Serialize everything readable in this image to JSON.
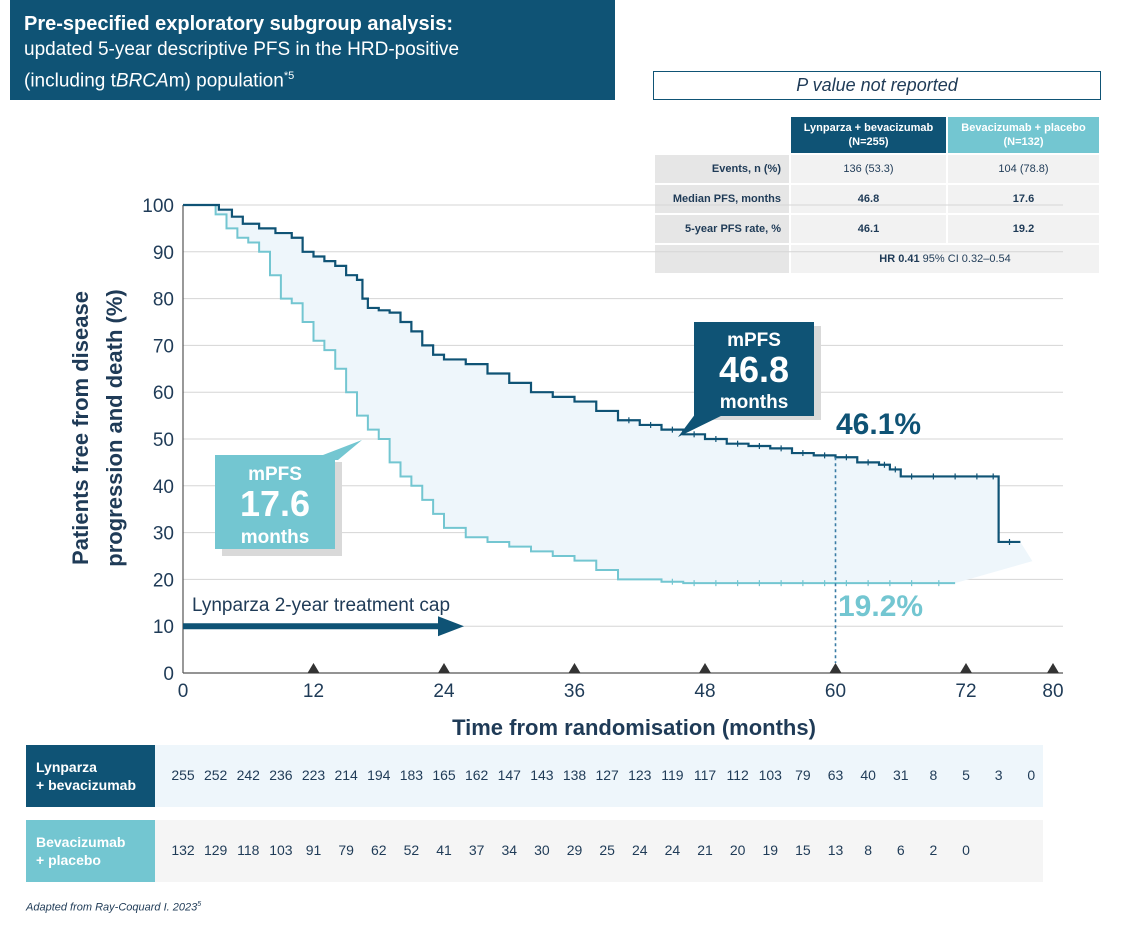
{
  "header": {
    "title": "Pre-specified exploratory subgroup analysis:",
    "subtitle_part1": "updated 5-year descriptive PFS in the HRD-positive",
    "subtitle_part2_pre": "(including t",
    "subtitle_part2_italic": "BRCA",
    "subtitle_part2_post": "m) population",
    "subtitle_sup": "*5"
  },
  "pvalue_note": "P value not reported",
  "summary_table": {
    "columns": [
      "Lynparza + bevacizumab (N=255)",
      "Bevacizumab + placebo (N=132)"
    ],
    "rows": [
      {
        "label": "Events, n (%)",
        "lyn": "136 (53.3)",
        "bev": "104 (78.8)"
      },
      {
        "label": "Median PFS, months",
        "lyn": "46.8",
        "bev": "17.6"
      },
      {
        "label": "5-year PFS rate, %",
        "lyn": "46.1",
        "bev": "19.2"
      }
    ],
    "hr_bold": "HR 0.41",
    "hr_rest": "95% CI 0.32–0.54"
  },
  "chart_data": {
    "type": "line",
    "ylabel_line1": "Patients free from disease",
    "ylabel_line2": "progression and death (%)",
    "xlabel": "Time from randomisation (months)",
    "xlim": [
      0,
      80
    ],
    "ylim": [
      0,
      100
    ],
    "x_ticks": [
      0,
      12,
      24,
      36,
      48,
      60,
      72,
      80
    ],
    "y_ticks": [
      0,
      10,
      20,
      30,
      40,
      50,
      60,
      70,
      80,
      90,
      100
    ],
    "grid": true,
    "colors": {
      "lynparza": "#0f5375",
      "placebo": "#73c6d1",
      "fill": "#eef6fb"
    },
    "series": [
      {
        "x": [
          0,
          3.3,
          4.5,
          5.5,
          7,
          8.5,
          10,
          11,
          12,
          13,
          14,
          15,
          16,
          16.5,
          17,
          18,
          19,
          20,
          21,
          22,
          23,
          24,
          26,
          28,
          30,
          32,
          34,
          36,
          38,
          40,
          42,
          44,
          46,
          48,
          50,
          52,
          54,
          56,
          58,
          60,
          62,
          64,
          65,
          66,
          68,
          70,
          72,
          74,
          75,
          77
        ],
        "y": [
          100,
          99,
          97.5,
          96,
          95,
          94,
          93,
          90,
          89,
          88,
          87,
          85,
          84,
          80,
          78,
          77.5,
          77,
          75,
          73,
          70,
          68,
          67,
          66,
          64,
          62,
          60,
          59,
          58,
          56,
          54,
          53,
          52,
          51,
          50,
          49,
          48.5,
          48,
          47,
          46.5,
          46.1,
          45,
          44.5,
          43.5,
          42,
          42,
          42,
          42,
          42,
          28,
          28
        ]
      },
      {
        "x": [
          0,
          3,
          4,
          5,
          6,
          7,
          8,
          9,
          10,
          11,
          12,
          13,
          14,
          15,
          16,
          17,
          18,
          19,
          20,
          21,
          22,
          23,
          24,
          26,
          28,
          30,
          32,
          34,
          36,
          38,
          40,
          42,
          44,
          46,
          48,
          50,
          52,
          54,
          56,
          58,
          60,
          62,
          64,
          66,
          68,
          71
        ],
        "y": [
          100,
          98,
          95,
          93,
          92,
          90,
          85,
          80,
          79,
          75,
          71,
          69,
          65,
          60,
          55,
          52,
          50,
          45,
          42,
          40,
          37,
          34,
          31,
          29,
          28,
          27,
          26,
          25,
          24,
          22,
          20,
          20,
          19.5,
          19.2,
          19.2,
          19.2,
          19.2,
          19.2,
          19.2,
          19.2,
          19.2,
          19.2,
          19.2,
          19.2,
          19.2,
          19.2
        ]
      }
    ],
    "annotations": {
      "lyn_mpfs_label": "mPFS",
      "lyn_mpfs_value": "46.8",
      "lyn_mpfs_unit": "months",
      "bev_mpfs_label": "mPFS",
      "bev_mpfs_value": "17.6",
      "bev_mpfs_unit": "months",
      "lyn_rate": "46.1%",
      "bev_rate": "19.2%",
      "treatment_cap": "Lynparza 2-year treatment cap",
      "cap_end_month": 24,
      "landmark_month": 60
    }
  },
  "risk_table": {
    "lynparza": {
      "label_line1": "Lynparza",
      "label_line2": "+ bevacizumab",
      "values": [
        "255",
        "252",
        "242",
        "236",
        "223",
        "214",
        "194",
        "183",
        "165",
        "162",
        "147",
        "143",
        "138",
        "127",
        "123",
        "119",
        "117",
        "112",
        "103",
        "79",
        "63",
        "40",
        "31",
        "8",
        "5",
        "3",
        "0"
      ]
    },
    "placebo": {
      "label_line1": "Bevacizumab",
      "label_line2": "+ placebo",
      "values": [
        "132",
        "129",
        "118",
        "103",
        "91",
        "79",
        "62",
        "52",
        "41",
        "37",
        "34",
        "30",
        "29",
        "25",
        "24",
        "24",
        "21",
        "20",
        "19",
        "15",
        "13",
        "8",
        "6",
        "2",
        "0"
      ]
    }
  },
  "footnote": "Adapted from Ray-Coquard I. 2023",
  "footnote_sup": "5"
}
